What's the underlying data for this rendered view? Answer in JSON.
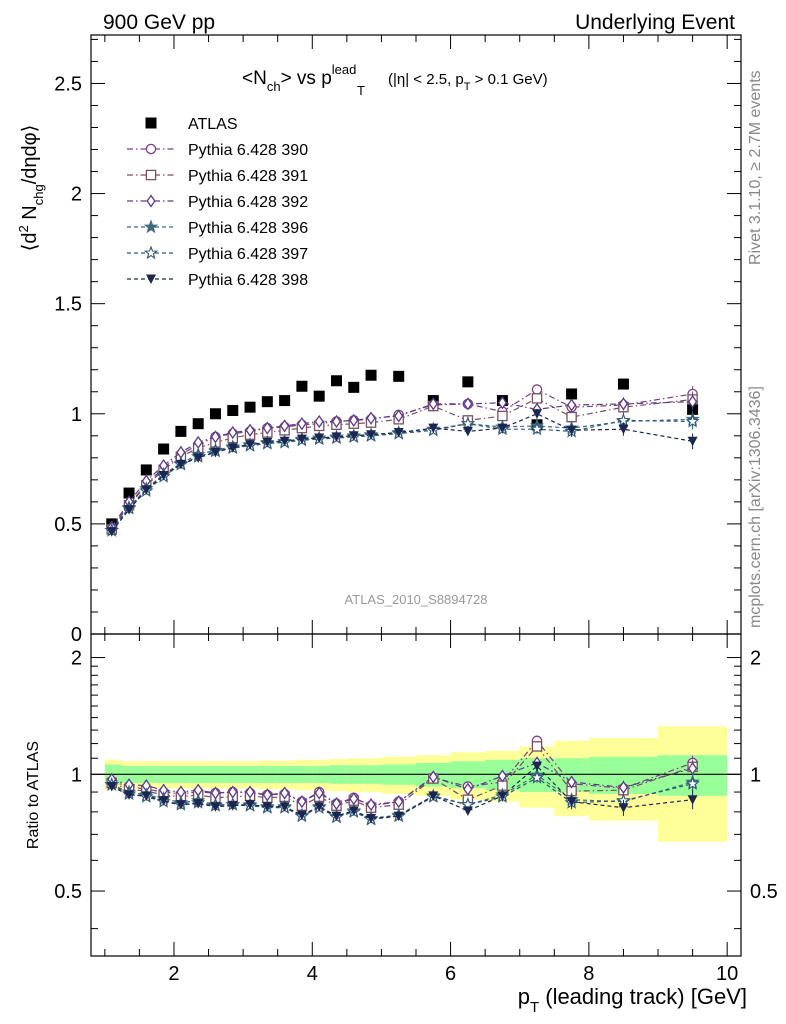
{
  "header": {
    "left": "900 GeV pp",
    "right": "Underlying Event"
  },
  "side": {
    "rivet": "Rivet 3.1.10, ≥ 2.7M events",
    "mcplots": "mcplots.cern.ch [arXiv:1306.3436]"
  },
  "analysis_tag": "ATLAS_2010_S8894728",
  "colors": {
    "data": "#000000",
    "s390": "#7a3f86",
    "s391": "#7a4f5e",
    "s392": "#5b3a8c",
    "s396": "#3f6b7e",
    "s397": "#2f5879",
    "s398": "#1b2651",
    "band_stat": "#99ff99",
    "band_syst": "#ffff99"
  },
  "chart_data": [
    {
      "type": "scatter",
      "panel": "main",
      "title": {
        "main": "<N",
        "main_sub": "ch",
        "vs": "> vs p",
        "vs_sup": "lead",
        "vs_sub": "T",
        "cuts": "(|η| < 2.5, p",
        "cuts_sub": "T",
        "cuts_end": " > 0.1 GeV)"
      },
      "ylabel": {
        "a": "⟨d",
        "a_sup": "2",
        "b": " N",
        "b_sub": "chg",
        "c": "/dηdφ⟩"
      },
      "xlim": [
        0.8,
        10.2
      ],
      "ylim": [
        0,
        2.72
      ],
      "yticks": [
        0,
        0.5,
        1,
        1.5,
        2,
        2.5
      ],
      "ytick_labels": [
        "0",
        "0.5",
        "1",
        "1.5",
        "2",
        "2.5"
      ],
      "x": [
        1.1,
        1.35,
        1.6,
        1.85,
        2.1,
        2.35,
        2.6,
        2.85,
        3.1,
        3.35,
        3.6,
        3.85,
        4.1,
        4.35,
        4.6,
        4.85,
        5.25,
        5.75,
        6.25,
        6.75,
        7.25,
        7.75,
        8.5,
        9.5
      ],
      "series": [
        {
          "name": "ATLAS",
          "key": "data",
          "marker": "square-filled",
          "line": "none",
          "values": [
            0.5,
            0.64,
            0.745,
            0.84,
            0.92,
            0.955,
            1.0,
            1.015,
            1.03,
            1.055,
            1.06,
            1.125,
            1.08,
            1.15,
            1.12,
            1.175,
            1.17,
            1.06,
            1.145,
            1.06,
            0.95,
            1.09,
            1.135,
            1.02
          ]
        },
        {
          "name": "Pythia 6.428 390",
          "key": "s390",
          "marker": "circle-open",
          "line": "dashdot",
          "values": [
            0.48,
            0.59,
            0.68,
            0.755,
            0.815,
            0.86,
            0.895,
            0.91,
            0.92,
            0.935,
            0.94,
            0.95,
            0.955,
            0.965,
            0.97,
            0.975,
            0.995,
            1.04,
            1.045,
            1.01,
            1.11,
            1.03,
            1.04,
            1.09
          ]
        },
        {
          "name": "Pythia 6.428 391",
          "key": "s391",
          "marker": "square-open",
          "line": "dashdot",
          "values": [
            0.475,
            0.585,
            0.675,
            0.745,
            0.805,
            0.845,
            0.87,
            0.89,
            0.905,
            0.915,
            0.925,
            0.935,
            0.945,
            0.95,
            0.955,
            0.96,
            0.975,
            1.035,
            0.97,
            0.99,
            1.07,
            0.985,
            1.03,
            1.065
          ]
        },
        {
          "name": "Pythia 6.428 392",
          "key": "s392",
          "marker": "diamond-open",
          "line": "dashdot",
          "values": [
            0.485,
            0.6,
            0.695,
            0.765,
            0.825,
            0.87,
            0.895,
            0.915,
            0.925,
            0.935,
            0.945,
            0.955,
            0.965,
            0.965,
            0.97,
            0.98,
            0.99,
            1.045,
            1.045,
            1.05,
            1.02,
            1.04,
            1.045,
            1.055
          ]
        },
        {
          "name": "Pythia 6.428 396",
          "key": "s396",
          "marker": "star-filled",
          "line": "dashed",
          "values": [
            0.47,
            0.575,
            0.66,
            0.725,
            0.775,
            0.815,
            0.835,
            0.85,
            0.86,
            0.87,
            0.875,
            0.885,
            0.89,
            0.895,
            0.9,
            0.905,
            0.915,
            0.93,
            0.955,
            0.94,
            0.945,
            0.935,
            0.965,
            0.975
          ]
        },
        {
          "name": "Pythia 6.428 397",
          "key": "s397",
          "marker": "star-open",
          "line": "dashed",
          "values": [
            0.47,
            0.57,
            0.65,
            0.715,
            0.77,
            0.805,
            0.83,
            0.845,
            0.855,
            0.865,
            0.87,
            0.88,
            0.885,
            0.89,
            0.895,
            0.9,
            0.91,
            0.925,
            0.955,
            0.93,
            0.93,
            0.92,
            0.97,
            0.965
          ]
        },
        {
          "name": "Pythia 6.428 398",
          "key": "s398",
          "marker": "triangle-down-filled",
          "line": "dashed",
          "values": [
            0.465,
            0.565,
            0.655,
            0.72,
            0.77,
            0.8,
            0.825,
            0.845,
            0.86,
            0.87,
            0.875,
            0.885,
            0.89,
            0.895,
            0.9,
            0.905,
            0.915,
            0.935,
            0.92,
            0.935,
            1.0,
            0.925,
            0.93,
            0.875
          ]
        }
      ]
    },
    {
      "type": "scatter",
      "panel": "ratio",
      "ylabel": "Ratio to ATLAS",
      "xlabel": {
        "a": "p",
        "a_sub": "T",
        "b": " (leading track) [GeV]"
      },
      "xlim": [
        0.8,
        10.2
      ],
      "xticks": [
        2,
        4,
        6,
        8,
        10
      ],
      "xtick_labels": [
        "2",
        "4",
        "6",
        "8",
        "10"
      ],
      "ylim": [
        0.34,
        2.3
      ],
      "yticks": [
        0.5,
        1,
        2
      ],
      "ytick_labels": [
        "0.5",
        "1",
        "2"
      ],
      "reference_line": 1,
      "bins": [
        [
          1.0,
          1.25
        ],
        [
          1.25,
          1.5
        ],
        [
          1.5,
          1.75
        ],
        [
          1.75,
          2.0
        ],
        [
          2.0,
          2.25
        ],
        [
          2.25,
          2.5
        ],
        [
          2.5,
          2.75
        ],
        [
          2.75,
          3.0
        ],
        [
          3.0,
          3.25
        ],
        [
          3.25,
          3.5
        ],
        [
          3.5,
          3.75
        ],
        [
          3.75,
          4.0
        ],
        [
          4.0,
          4.25
        ],
        [
          4.25,
          4.5
        ],
        [
          4.5,
          4.75
        ],
        [
          4.75,
          5.0
        ],
        [
          5.0,
          5.5
        ],
        [
          5.5,
          6.0
        ],
        [
          6.0,
          6.5
        ],
        [
          6.5,
          7.0
        ],
        [
          7.0,
          7.5
        ],
        [
          7.5,
          8.0
        ],
        [
          8.0,
          9.0
        ],
        [
          9.0,
          10.0
        ]
      ],
      "band_stat_halfwidth": [
        0.06,
        0.05,
        0.05,
        0.05,
        0.05,
        0.05,
        0.05,
        0.05,
        0.05,
        0.05,
        0.05,
        0.05,
        0.05,
        0.055,
        0.055,
        0.055,
        0.06,
        0.07,
        0.08,
        0.09,
        0.1,
        0.1,
        0.11,
        0.12
      ],
      "band_syst_halfwidth": [
        0.09,
        0.08,
        0.08,
        0.08,
        0.08,
        0.08,
        0.08,
        0.08,
        0.08,
        0.085,
        0.085,
        0.09,
        0.09,
        0.095,
        0.1,
        0.1,
        0.11,
        0.12,
        0.14,
        0.15,
        0.18,
        0.22,
        0.24,
        0.33
      ],
      "series": [
        {
          "name": "Pythia 6.428 390",
          "key": "s390",
          "values": [
            0.96,
            0.93,
            0.915,
            0.9,
            0.89,
            0.9,
            0.895,
            0.9,
            0.895,
            0.885,
            0.89,
            0.85,
            0.9,
            0.84,
            0.87,
            0.83,
            0.85,
            0.98,
            0.93,
            0.955,
            1.22,
            0.945,
            0.92,
            1.07
          ]
        },
        {
          "name": "Pythia 6.428 391",
          "key": "s391",
          "values": [
            0.95,
            0.915,
            0.905,
            0.885,
            0.875,
            0.885,
            0.87,
            0.875,
            0.88,
            0.87,
            0.875,
            0.83,
            0.875,
            0.83,
            0.855,
            0.82,
            0.835,
            0.975,
            0.86,
            0.935,
            1.18,
            0.905,
            0.91,
            1.045
          ]
        },
        {
          "name": "Pythia 6.428 392",
          "key": "s392",
          "values": [
            0.97,
            0.94,
            0.935,
            0.91,
            0.9,
            0.91,
            0.895,
            0.9,
            0.9,
            0.885,
            0.895,
            0.85,
            0.895,
            0.84,
            0.865,
            0.835,
            0.85,
            0.985,
            0.915,
            0.99,
            1.07,
            0.955,
            0.925,
            1.035
          ]
        },
        {
          "name": "Pythia 6.428 396",
          "key": "s396",
          "values": [
            0.94,
            0.9,
            0.885,
            0.865,
            0.845,
            0.855,
            0.835,
            0.835,
            0.835,
            0.825,
            0.825,
            0.785,
            0.825,
            0.78,
            0.805,
            0.77,
            0.785,
            0.88,
            0.835,
            0.885,
            0.995,
            0.86,
            0.85,
            0.955
          ]
        },
        {
          "name": "Pythia 6.428 397",
          "key": "s397",
          "values": [
            0.94,
            0.89,
            0.875,
            0.85,
            0.835,
            0.845,
            0.83,
            0.835,
            0.83,
            0.82,
            0.82,
            0.78,
            0.82,
            0.775,
            0.8,
            0.765,
            0.78,
            0.875,
            0.835,
            0.875,
            0.98,
            0.845,
            0.855,
            0.945
          ]
        },
        {
          "name": "Pythia 6.428 398",
          "key": "s398",
          "values": [
            0.93,
            0.885,
            0.88,
            0.855,
            0.835,
            0.84,
            0.825,
            0.83,
            0.835,
            0.825,
            0.825,
            0.785,
            0.825,
            0.78,
            0.805,
            0.77,
            0.78,
            0.88,
            0.805,
            0.88,
            1.05,
            0.85,
            0.82,
            0.86
          ]
        }
      ]
    }
  ]
}
